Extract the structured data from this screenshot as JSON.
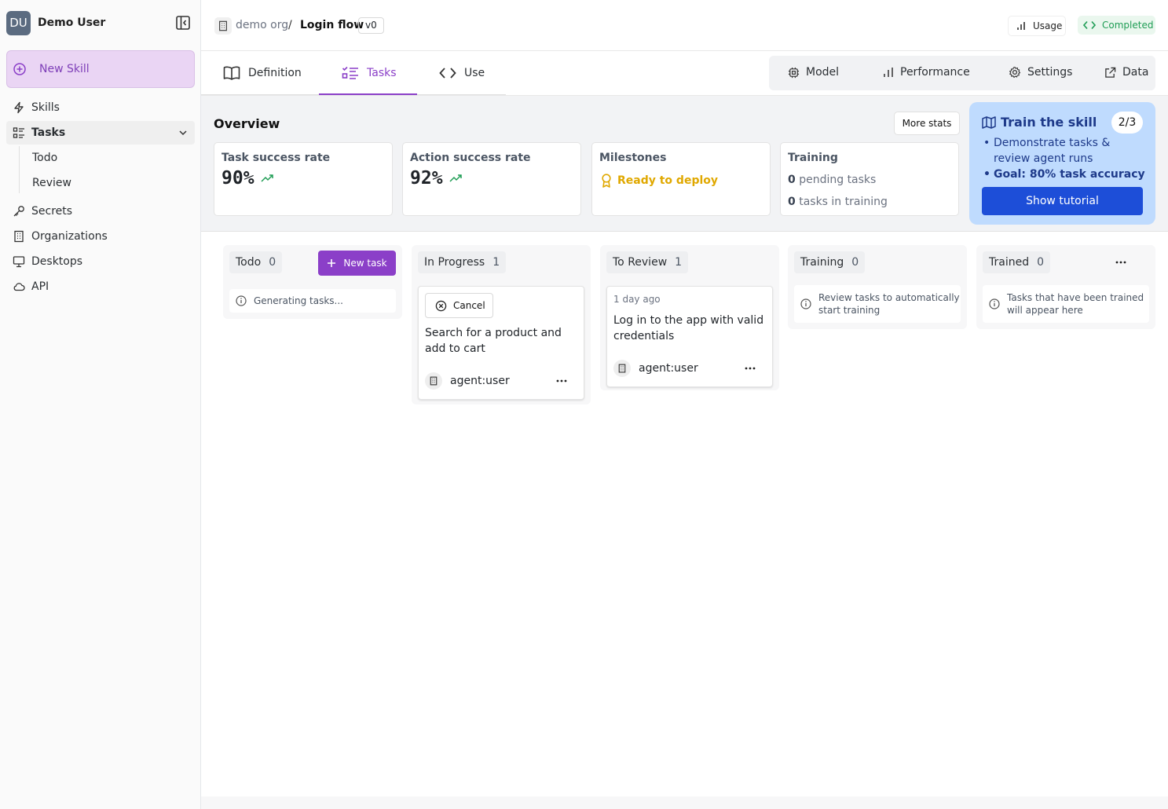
{
  "user": {
    "initials": "DU",
    "name": "Demo User"
  },
  "sidebar": {
    "new_skill": "New Skill",
    "items": [
      {
        "label": "Skills"
      },
      {
        "label": "Tasks"
      },
      {
        "label": "Secrets"
      },
      {
        "label": "Organizations"
      },
      {
        "label": "Desktops"
      },
      {
        "label": "API"
      }
    ],
    "sub_items": [
      {
        "label": "Todo"
      },
      {
        "label": "Review"
      }
    ]
  },
  "header": {
    "org": "demo org",
    "separator": "/",
    "skill": "Login flow",
    "version": "v0",
    "usage": "Usage",
    "status": "Completed"
  },
  "tabs": [
    {
      "label": "Definition"
    },
    {
      "label": "Tasks"
    },
    {
      "label": "Use"
    }
  ],
  "right_tabs": [
    {
      "label": "Model"
    },
    {
      "label": "Performance"
    },
    {
      "label": "Settings"
    },
    {
      "label": "Data"
    }
  ],
  "overview": {
    "title": "Overview",
    "more_stats": "More stats",
    "task_success": {
      "label": "Task success rate",
      "value": "90%"
    },
    "action_success": {
      "label": "Action success rate",
      "value": "92%"
    },
    "milestones": {
      "label": "Milestones",
      "value": "Ready to deploy"
    },
    "training": {
      "label": "Training",
      "pending_count": "0",
      "pending_text": "pending tasks",
      "in_training_count": "0",
      "in_training_text": "tasks in training"
    }
  },
  "train_card": {
    "title": "Train the skill",
    "step": "2/3",
    "bullets": [
      "Demonstrate tasks & review agent runs",
      "Goal: 80% task accuracy"
    ],
    "button": "Show tutorial"
  },
  "board": {
    "todo": {
      "title": "Todo",
      "count": "0",
      "new_task": "New task",
      "info": "Generating tasks..."
    },
    "in_progress": {
      "title": "In Progress",
      "count": "1",
      "card": {
        "cancel": "Cancel",
        "title": "Search for a product and add to cart",
        "agent": "agent:user"
      }
    },
    "to_review": {
      "title": "To Review",
      "count": "1",
      "card": {
        "time": "1 day ago",
        "title": "Log in to the app with valid credentials",
        "agent": "agent:user"
      }
    },
    "training": {
      "title": "Training",
      "count": "0",
      "info": "Review tasks to automatically start training"
    },
    "trained": {
      "title": "Trained",
      "count": "0",
      "info": "Tasks that have been trained will appear here"
    }
  },
  "colors": {
    "accent": "#8b3fc8",
    "blue": "#1d4ed8",
    "success": "#1f9d55",
    "milestone": "#e0a800"
  }
}
